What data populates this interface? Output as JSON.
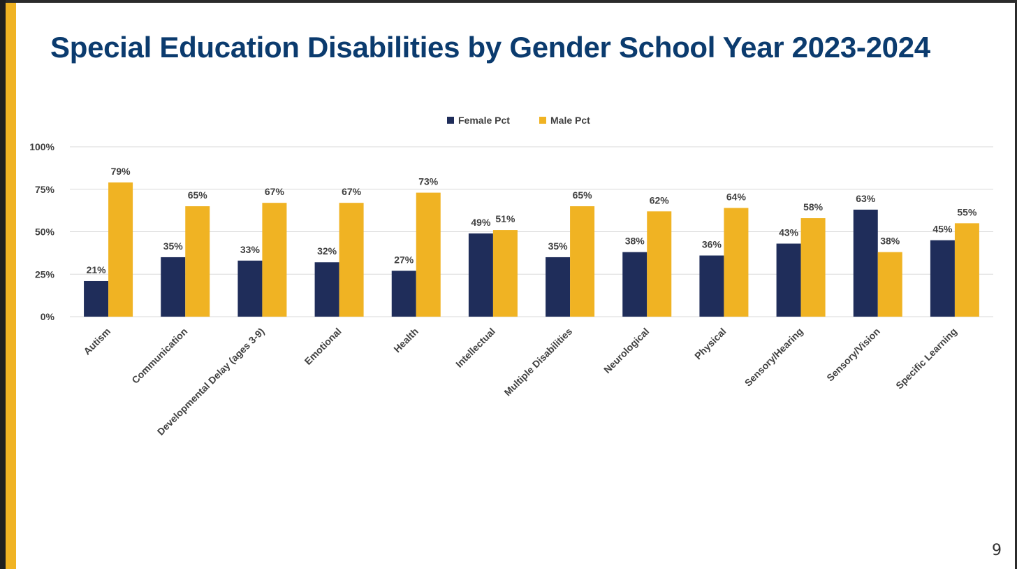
{
  "slide": {
    "title": "Special Education Disabilities by Gender School Year 2023-2024",
    "page_number": "9"
  },
  "colors": {
    "accent": "#f0b323",
    "title": "#0b3b6e",
    "female": "#1f2d5a",
    "male": "#f0b323",
    "grid": "#d9d9d9",
    "text": "#404040"
  },
  "chart_data": {
    "type": "bar",
    "categories": [
      "Autism",
      "Communication",
      "Developmental Delay (ages 3-9)",
      "Emotional",
      "Health",
      "Intellectual",
      "Multiple Disabilities",
      "Neurological",
      "Physical",
      "Sensory/Hearing",
      "Sensory/Vision",
      "Specific Learning"
    ],
    "series": [
      {
        "name": "Female Pct",
        "color": "#1f2d5a",
        "values": [
          21,
          35,
          33,
          32,
          27,
          49,
          35,
          38,
          36,
          43,
          63,
          45
        ],
        "labels": [
          "21%",
          "35%",
          "33%",
          "32%",
          "27%",
          "49%",
          "35%",
          "38%",
          "36%",
          "43%",
          "63%",
          "45%"
        ]
      },
      {
        "name": "Male Pct",
        "color": "#f0b323",
        "values": [
          79,
          65,
          67,
          67,
          73,
          51,
          65,
          62,
          64,
          58,
          38,
          55
        ],
        "labels": [
          "79%",
          "65%",
          "67%",
          "67%",
          "73%",
          "51%",
          "65%",
          "62%",
          "64%",
          "58%",
          "38%",
          "55%"
        ]
      }
    ],
    "yticks": [
      "0%",
      "25%",
      "50%",
      "75%",
      "100%"
    ],
    "ytick_values": [
      0,
      25,
      50,
      75,
      100
    ],
    "ylim": [
      0,
      100
    ],
    "grid": true,
    "legend_position": "top-center",
    "xlabel": "",
    "ylabel": ""
  }
}
